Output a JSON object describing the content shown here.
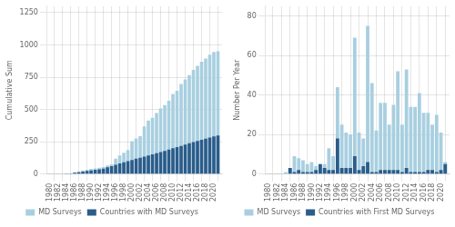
{
  "chart_data": [
    {
      "type": "bar",
      "x": [
        1980,
        1981,
        1982,
        1983,
        1984,
        1985,
        1986,
        1987,
        1988,
        1989,
        1990,
        1991,
        1992,
        1993,
        1994,
        1995,
        1996,
        1997,
        1998,
        1999,
        2000,
        2001,
        2002,
        2003,
        2004,
        2005,
        2006,
        2007,
        2008,
        2009,
        2010,
        2011,
        2012,
        2013,
        2014,
        2015,
        2016,
        2017,
        2018,
        2019,
        2020,
        2021
      ],
      "xlim": [
        1979.3,
        2022
      ],
      "xticks": [
        1980,
        1982,
        1984,
        1986,
        1988,
        1990,
        1992,
        1994,
        1996,
        1998,
        2000,
        2002,
        2004,
        2006,
        2008,
        2010,
        2012,
        2014,
        2016,
        2018,
        2020
      ],
      "ylabel": "Cumulative Sum",
      "ylim": [
        0,
        1300
      ],
      "yticks": [
        0,
        250,
        500,
        750,
        1000,
        1250
      ],
      "stacked": false,
      "grid": true,
      "legend": "bottom",
      "series": [
        {
          "name": "MD Surveys",
          "color": "#a8cfe0",
          "values": [
            0,
            0,
            0,
            0,
            1,
            4,
            13,
            21,
            28,
            33,
            39,
            43,
            48,
            53,
            66,
            75,
            119,
            144,
            165,
            185,
            254,
            275,
            293,
            368,
            414,
            436,
            472,
            508,
            533,
            568,
            620,
            645,
            698,
            732,
            766,
            807,
            838,
            869,
            894,
            924,
            945,
            951
          ]
        },
        {
          "name": "Countries with MD Surveys",
          "color": "#2b5c8a",
          "values": [
            0,
            0,
            0,
            0,
            1,
            4,
            9,
            14,
            19,
            24,
            28,
            32,
            37,
            42,
            52,
            61,
            71,
            81,
            91,
            99,
            109,
            118,
            126,
            135,
            144,
            152,
            161,
            170,
            179,
            189,
            199,
            208,
            218,
            228,
            238,
            247,
            256,
            265,
            274,
            283,
            291,
            299
          ]
        }
      ]
    },
    {
      "type": "bar",
      "x": [
        1980,
        1981,
        1982,
        1983,
        1984,
        1985,
        1986,
        1987,
        1988,
        1989,
        1990,
        1991,
        1992,
        1993,
        1994,
        1995,
        1996,
        1997,
        1998,
        1999,
        2000,
        2001,
        2002,
        2003,
        2004,
        2005,
        2006,
        2007,
        2008,
        2009,
        2010,
        2011,
        2012,
        2013,
        2014,
        2015,
        2016,
        2017,
        2018,
        2019,
        2020,
        2021
      ],
      "xlim": [
        1979.3,
        2022
      ],
      "xticks": [
        1980,
        1982,
        1984,
        1986,
        1988,
        1990,
        1992,
        1994,
        1996,
        1998,
        2000,
        2002,
        2004,
        2006,
        2008,
        2010,
        2012,
        2014,
        2016,
        2018,
        2020
      ],
      "ylabel": "Number Per Year",
      "ylim": [
        0,
        85
      ],
      "yticks": [
        0,
        20,
        40,
        60,
        80
      ],
      "stacked": false,
      "grid": true,
      "legend": "bottom",
      "series": [
        {
          "name": "MD Surveys",
          "color": "#a8cfe0",
          "values": [
            0,
            0,
            0,
            0,
            1,
            3,
            9,
            8,
            7,
            5,
            6,
            4,
            5,
            5,
            13,
            9,
            44,
            25,
            21,
            20,
            69,
            21,
            18,
            75,
            46,
            22,
            36,
            36,
            25,
            35,
            52,
            25,
            53,
            34,
            34,
            41,
            31,
            31,
            25,
            30,
            21,
            6
          ]
        },
        {
          "name": "Countries with First MD Surveys",
          "color": "#2b5c8a",
          "values": [
            0,
            0,
            0,
            0,
            0,
            3,
            1,
            2,
            1,
            1,
            1,
            2,
            5,
            3,
            2,
            2,
            18,
            3,
            3,
            3,
            9,
            2,
            4,
            6,
            1,
            1,
            2,
            2,
            2,
            2,
            2,
            1,
            3,
            1,
            1,
            1,
            1,
            2,
            2,
            1,
            2,
            5
          ]
        }
      ]
    }
  ]
}
